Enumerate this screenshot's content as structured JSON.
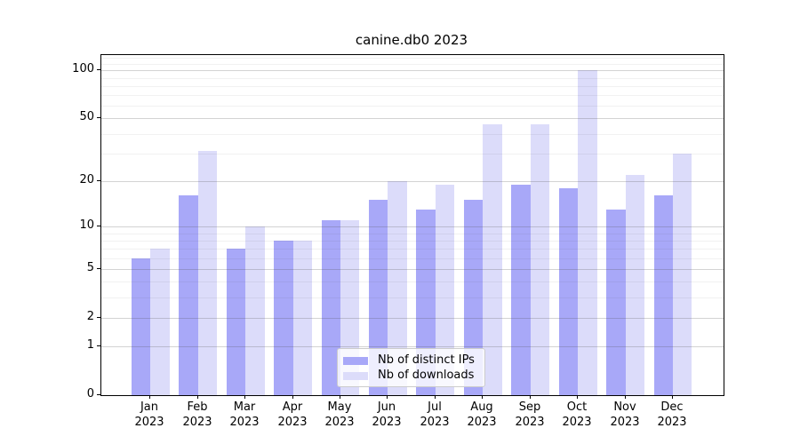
{
  "chart_data": {
    "type": "bar",
    "title": "canine.db0 2023",
    "categories": [
      "Jan",
      "Feb",
      "Mar",
      "Apr",
      "May",
      "Jun",
      "Jul",
      "Aug",
      "Sep",
      "Oct",
      "Nov",
      "Dec"
    ],
    "category_year": "2023",
    "series": [
      {
        "name": "Nb of distinct IPs",
        "color": "#a8a8f8",
        "values": [
          6,
          16,
          7,
          8,
          11,
          15,
          13,
          15,
          19,
          18,
          13,
          16
        ]
      },
      {
        "name": "Nb of downloads",
        "color": "#dcdcfa",
        "values": [
          7,
          31,
          10,
          8,
          11,
          20,
          19,
          46,
          46,
          100,
          22,
          30
        ]
      }
    ],
    "y_ticks": [
      0,
      1,
      2,
      5,
      10,
      20,
      50,
      100
    ],
    "y_minor_gridlines": [
      3,
      4,
      6,
      7,
      8,
      9,
      30,
      40,
      60,
      70,
      80,
      90,
      110,
      120
    ],
    "y_scale": "log10(1+v)",
    "ylim": [
      0,
      124.6
    ],
    "grid": true,
    "legend_position": "lower center",
    "colors": {
      "distinct_ips_bar": "#a8a8f8",
      "downloads_bar": "#dcdcfa",
      "major_grid": "#d3d3d3",
      "minor_grid": "#ededed",
      "spine": "#000000"
    }
  }
}
